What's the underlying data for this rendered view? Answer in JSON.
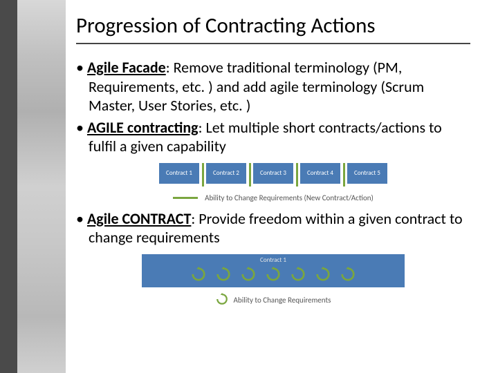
{
  "title": "Progression of Contracting Actions",
  "bullets": {
    "b1_bold": "Agile Facade",
    "b1_rest": ": Remove traditional terminology (PM, Requirements, etc. ) and add agile terminology  (Scrum Master, User Stories, etc. )",
    "b2_bold": "AGILE contracting",
    "b2_rest": ": Let multiple short contracts/actions to fulfil a given capability",
    "b3_bold": "Agile CONTRACT",
    "b3_rest": ": Provide freedom within a given contract to change requirements"
  },
  "diagram1": {
    "boxes": [
      "Contract 1",
      "Contract 2",
      "Contract 3",
      "Contract 4",
      "Contract 5"
    ],
    "legend": "Ability to Change Requirements (New Contract/Action)",
    "box_color": "#4a7bb5",
    "line_color": "#7aa63f"
  },
  "diagram2": {
    "title": "Contract 1",
    "legend": "Ability to Change Requirements",
    "box_color": "#4a7bb5",
    "arrow_color": "#7aa63f",
    "arrow_count": 7
  }
}
